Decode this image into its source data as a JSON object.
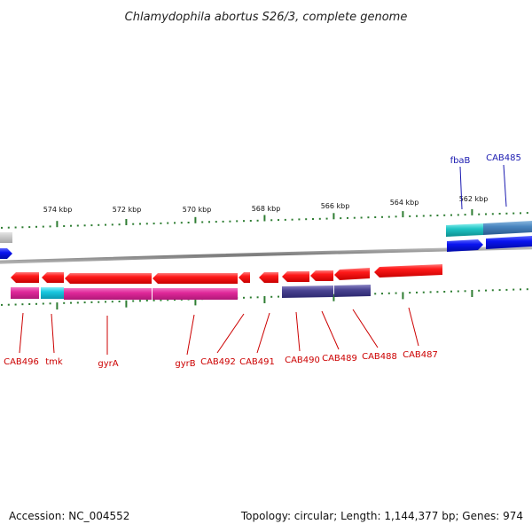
{
  "title": "Chlamydophila abortus S26/3, complete genome",
  "footer": {
    "accession": "Accession: NC_004552",
    "summary": "Topology: circular; Length: 1,144,377 bp; Genes: 974"
  },
  "colors": {
    "backbone": "#8a8a8a",
    "tick": "#2e7d32",
    "reverse_gene": "#e8141c",
    "reverse_label": "#cc0000",
    "forward_gene": "#0a14e6",
    "forward_label": "#1a1ab0",
    "pink_feature": "#e02a98",
    "cyan_feature": "#18c8e0",
    "navy_feature": "#4a4492",
    "steel_feature": "#4a86c0",
    "teal_feature": "#20c4c4",
    "gray_feature": "#c8c8c8"
  },
  "ticks": [
    {
      "label": "574 kbp"
    },
    {
      "label": "572 kbp"
    },
    {
      "label": "570 kbp"
    },
    {
      "label": "568 kbp"
    },
    {
      "label": "566 kbp"
    },
    {
      "label": "564 kbp"
    },
    {
      "label": "562 kbp"
    }
  ],
  "genes_reverse": [
    {
      "label": "CAB496"
    },
    {
      "label": "tmk"
    },
    {
      "label": "gyrA"
    },
    {
      "label": "gyrB"
    },
    {
      "label": "CAB492"
    },
    {
      "label": "CAB491"
    },
    {
      "label": "CAB490"
    },
    {
      "label": "CAB489"
    },
    {
      "label": "CAB488"
    },
    {
      "label": "CAB487"
    }
  ],
  "genes_forward": [
    {
      "label": "fbaB"
    },
    {
      "label": "CAB485"
    }
  ]
}
